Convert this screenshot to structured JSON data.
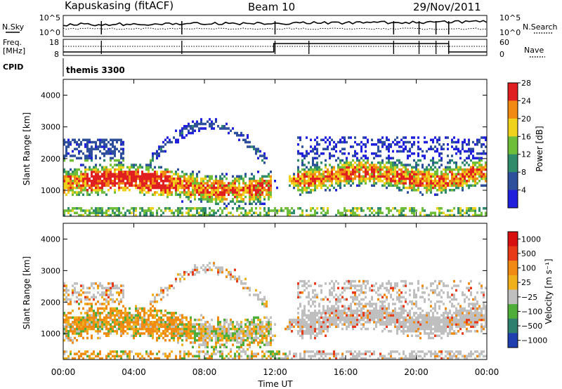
{
  "header": {
    "station": "Kapuskasing (fitACF)",
    "beam": "Beam 10",
    "date": "29/Nov/2011"
  },
  "top_panels": {
    "nsky_label": "N.Sky",
    "nsky_ticks": [
      "10^5",
      "10^0"
    ],
    "nsearch_label": "N.Search",
    "nsearch_ticks": [
      "10^5",
      "10^0"
    ],
    "freq_label": "Freq.",
    "freq_unit": "[MHz]",
    "freq_ticks": [
      "18",
      "8"
    ],
    "nave_label": "Nave",
    "nave_ticks": [
      "60",
      "0"
    ],
    "cpid_label": "CPID",
    "cpid_value": "themis 3300"
  },
  "chart_data": [
    {
      "type": "heatmap",
      "title": "",
      "ylabel": "Slant Range [km]",
      "xlabel": "",
      "ylim": [
        180,
        4500
      ],
      "yticks": [
        "1000",
        "2000",
        "3000",
        "4000"
      ],
      "colorbar_label": "Power [dB]",
      "colorbar_ticks": [
        "4",
        "8",
        "12",
        "16",
        "20",
        "24",
        "28"
      ],
      "colors": [
        "#1f1fdc",
        "#2e4f9c",
        "#2f8b6a",
        "#6fbe3a",
        "#f0d21c",
        "#f08a12",
        "#e02020"
      ]
    },
    {
      "type": "heatmap",
      "title": "",
      "ylabel": "Slant Range [km]",
      "xlabel": "Time UT",
      "ylim": [
        180,
        4500
      ],
      "yticks": [
        "1000",
        "2000",
        "3000",
        "4000"
      ],
      "xticks": [
        "00:00",
        "04:00",
        "08:00",
        "12:00",
        "16:00",
        "20:00",
        "00:00"
      ],
      "colorbar_label": "Velocity [m s⁻¹]",
      "colorbar_ticks": [
        "1000",
        "500",
        "100",
        "25",
        "−25",
        "−100",
        "−500",
        "−1000"
      ],
      "colors": [
        "#1f3fb0",
        "#2f7f6f",
        "#4fae3a",
        "#bfbfbf",
        "#f0b01c",
        "#f08a12",
        "#e83a18",
        "#d81010"
      ]
    }
  ]
}
